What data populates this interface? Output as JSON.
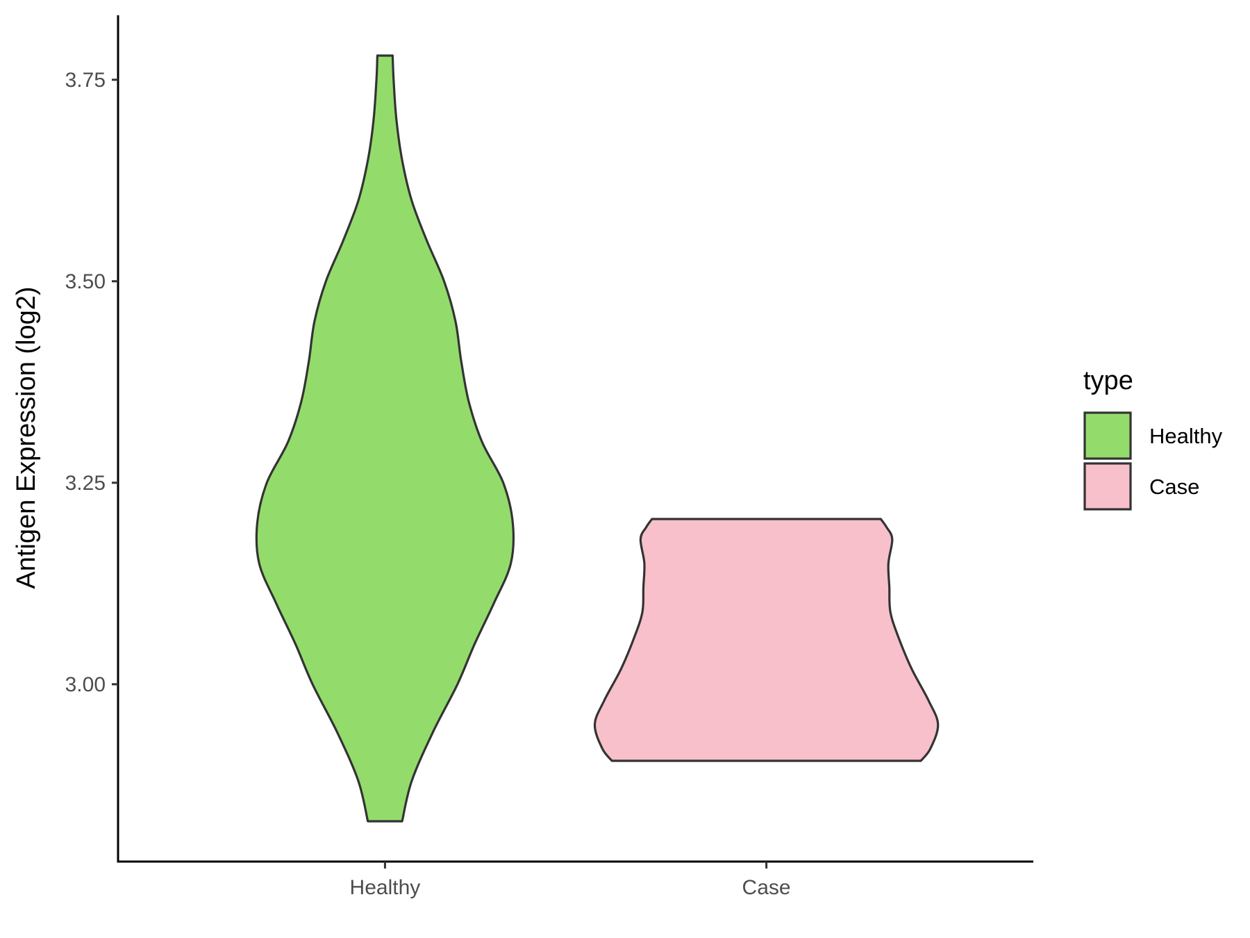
{
  "chart_data": {
    "type": "violin",
    "title": "",
    "xlabel": "",
    "ylabel": "Antigen Expression (log2)",
    "ylim": [
      2.78,
      3.83
    ],
    "yticks": [
      3.0,
      3.25,
      3.5,
      3.75
    ],
    "ytick_labels": [
      "3.00",
      "3.25",
      "3.50",
      "3.75"
    ],
    "categories": [
      "Healthy",
      "Case"
    ],
    "grid": false,
    "legend": {
      "title": "type",
      "position": "right",
      "entries": [
        {
          "label": "Healthy",
          "color": "#93dc6b"
        },
        {
          "label": "Case",
          "color": "#f7c0ca"
        }
      ]
    },
    "series": [
      {
        "name": "Healthy",
        "color": "#93dc6b",
        "outline": "#333333",
        "min": 2.83,
        "max": 3.78,
        "profile": [
          [
            2.83,
            0.09
          ],
          [
            2.88,
            0.14
          ],
          [
            2.94,
            0.25
          ],
          [
            3.0,
            0.38
          ],
          [
            3.05,
            0.47
          ],
          [
            3.1,
            0.57
          ],
          [
            3.15,
            0.66
          ],
          [
            3.2,
            0.67
          ],
          [
            3.25,
            0.62
          ],
          [
            3.3,
            0.51
          ],
          [
            3.35,
            0.44
          ],
          [
            3.4,
            0.4
          ],
          [
            3.45,
            0.37
          ],
          [
            3.5,
            0.31
          ],
          [
            3.55,
            0.22
          ],
          [
            3.6,
            0.14
          ],
          [
            3.65,
            0.09
          ],
          [
            3.7,
            0.06
          ],
          [
            3.75,
            0.045
          ],
          [
            3.78,
            0.04
          ]
        ]
      },
      {
        "name": "Case",
        "color": "#f7c0ca",
        "outline": "#333333",
        "min": 2.905,
        "max": 3.205,
        "profile": [
          [
            2.905,
            0.81
          ],
          [
            2.92,
            0.86
          ],
          [
            2.95,
            0.9
          ],
          [
            2.98,
            0.85
          ],
          [
            3.02,
            0.76
          ],
          [
            3.06,
            0.69
          ],
          [
            3.09,
            0.65
          ],
          [
            3.12,
            0.645
          ],
          [
            3.15,
            0.64
          ],
          [
            3.18,
            0.66
          ],
          [
            3.195,
            0.63
          ],
          [
            3.205,
            0.6
          ]
        ]
      }
    ]
  }
}
